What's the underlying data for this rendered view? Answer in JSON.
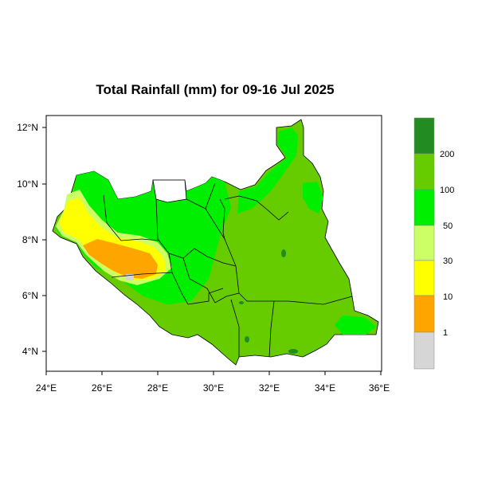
{
  "map": {
    "title": "Total Rainfall (mm) for 09-16 Jul 2025",
    "x_ticks": [
      "24°E",
      "26°E",
      "28°E",
      "30°E",
      "32°E",
      "34°E",
      "36°E"
    ],
    "y_ticks": [
      "12°N",
      "10°N",
      "8°N",
      "6°N",
      "4°N"
    ],
    "legend": {
      "levels": [
        "1",
        "10",
        "30",
        "50",
        "100",
        "200"
      ],
      "colors": [
        "#d6d6d6",
        "#ffa500",
        "#ffff00",
        "#ccff66",
        "#00ee00",
        "#66cc00",
        "#228b22"
      ]
    }
  },
  "palette": {
    "heavy": "#66cc00",
    "moderate": "#00ee00",
    "light": "#ccff66",
    "low": "#ffff00",
    "very_low": "#ffa500",
    "extreme": "#228b22",
    "none": "#d6d6d6"
  }
}
